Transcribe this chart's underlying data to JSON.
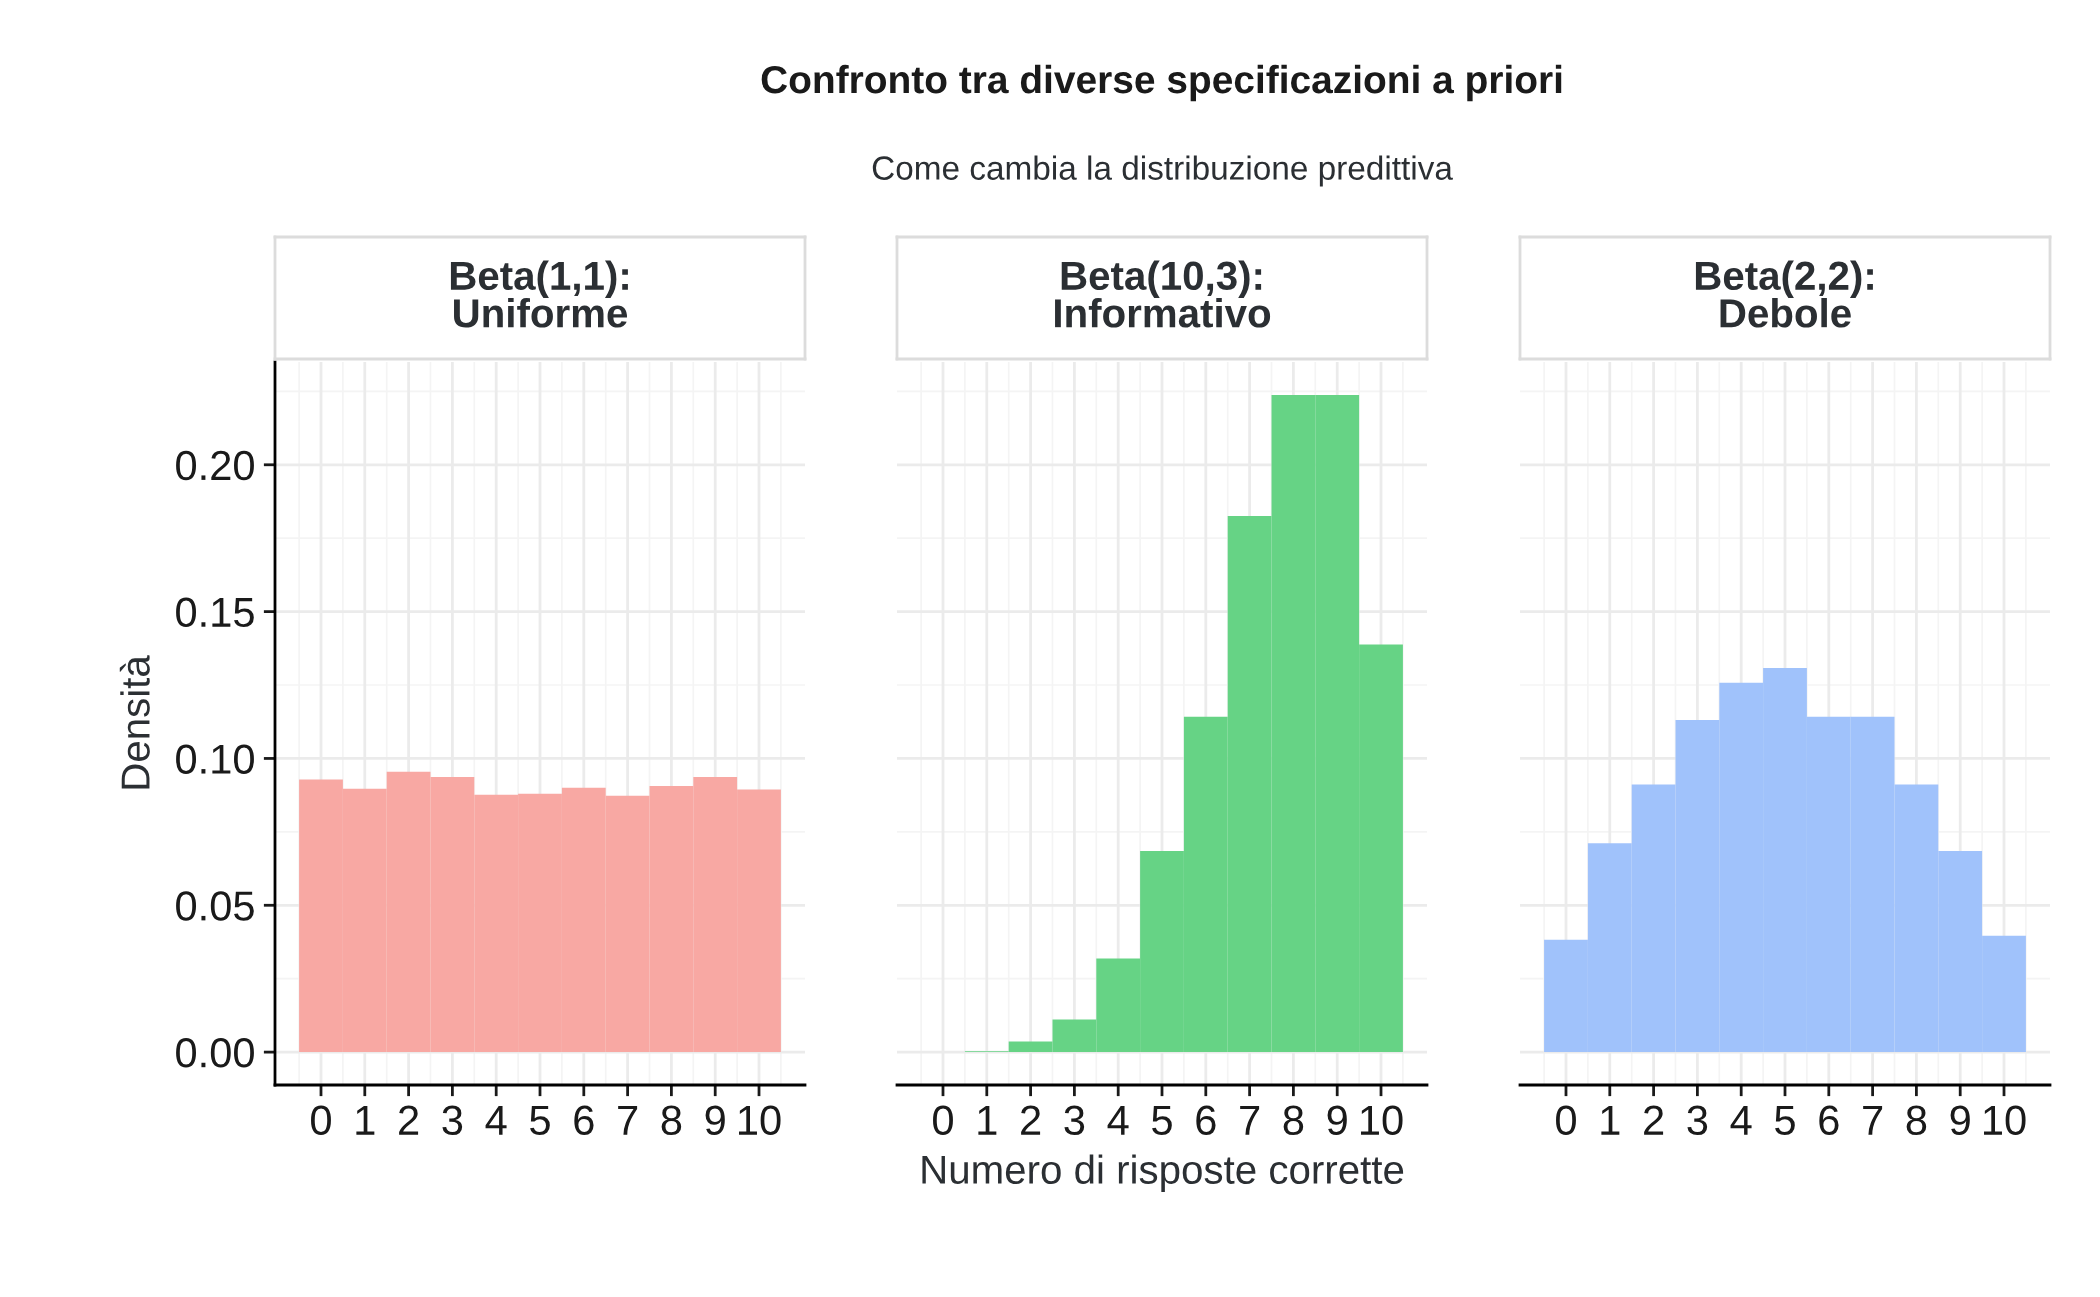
{
  "chart_data": [
    {
      "type": "histogram",
      "title": "Beta(1,1):\nUniforme",
      "ylabel": "Densità",
      "annotations": [
        "Confronto tra diverse specificazioni a priori",
        "Come cambia la distribuzione predittiva"
      ],
      "bins": [
        -0.5,
        0.5,
        1.5,
        2.5,
        3.5,
        4.5,
        5.5,
        6.5,
        7.5,
        8.5,
        9.5,
        10.5
      ],
      "values": [
        0.0928,
        0.0897,
        0.0955,
        0.0937,
        0.0876,
        0.088,
        0.09,
        0.0873,
        0.0906,
        0.0937,
        0.0894
      ],
      "color": "#f8a8a3",
      "xlim": [
        -1.05,
        11.05
      ],
      "xticks": [
        0,
        1,
        2,
        3,
        4,
        5,
        6,
        7,
        8,
        9,
        10
      ],
      "ylim": [
        -0.0112,
        0.235
      ],
      "yticks": [
        {
          "value": 0,
          "label": "0.00"
        },
        {
          "value": 0.05,
          "label": "0.05"
        },
        {
          "value": 0.1,
          "label": "0.10"
        },
        {
          "value": 0.15,
          "label": "0.15"
        },
        {
          "value": 0.2,
          "label": "0.20"
        }
      ],
      "grid": true
    },
    {
      "type": "histogram",
      "title": "Beta(10,3):\nInformativo",
      "xlabel": "Numero di risposte corrette",
      "bins": [
        -0.5,
        0.5,
        1.5,
        2.5,
        3.5,
        4.5,
        5.5,
        6.5,
        7.5,
        8.5,
        9.5,
        10.5
      ],
      "values": [
        0,
        0.0003,
        0.0036,
        0.0111,
        0.0319,
        0.0685,
        0.1142,
        0.1826,
        0.2238,
        0.2238,
        0.1388
      ],
      "color": "#66d385",
      "xlim": [
        -1.05,
        11.05
      ],
      "xticks": [
        0,
        1,
        2,
        3,
        4,
        5,
        6,
        7,
        8,
        9,
        10
      ],
      "ylim": [
        -0.0112,
        0.235
      ],
      "yticks": [
        {
          "value": 0,
          "label": null
        },
        {
          "value": 0.05,
          "label": null
        },
        {
          "value": 0.1,
          "label": null
        },
        {
          "value": 0.15,
          "label": null
        },
        {
          "value": 0.2,
          "label": null
        }
      ],
      "grid": true,
      "tick_labels": "x"
    },
    {
      "type": "histogram",
      "title": "Beta(2,2):\nDebole",
      "bins": [
        -0.5,
        0.5,
        1.5,
        2.5,
        3.5,
        4.5,
        5.5,
        6.5,
        7.5,
        8.5,
        9.5,
        10.5
      ],
      "values": [
        0.0383,
        0.0711,
        0.0911,
        0.1131,
        0.1258,
        0.1308,
        0.1142,
        0.1142,
        0.0911,
        0.0685,
        0.0396
      ],
      "color": "#a0c2fb",
      "xlim": [
        -1.05,
        11.05
      ],
      "xticks": [
        0,
        1,
        2,
        3,
        4,
        5,
        6,
        7,
        8,
        9,
        10
      ],
      "ylim": [
        -0.0112,
        0.235
      ],
      "yticks": [
        {
          "value": 0,
          "label": null
        },
        {
          "value": 0.05,
          "label": null
        },
        {
          "value": 0.1,
          "label": null
        },
        {
          "value": 0.15,
          "label": null
        },
        {
          "value": 0.2,
          "label": null
        }
      ],
      "grid": true,
      "tick_labels": "x"
    }
  ]
}
